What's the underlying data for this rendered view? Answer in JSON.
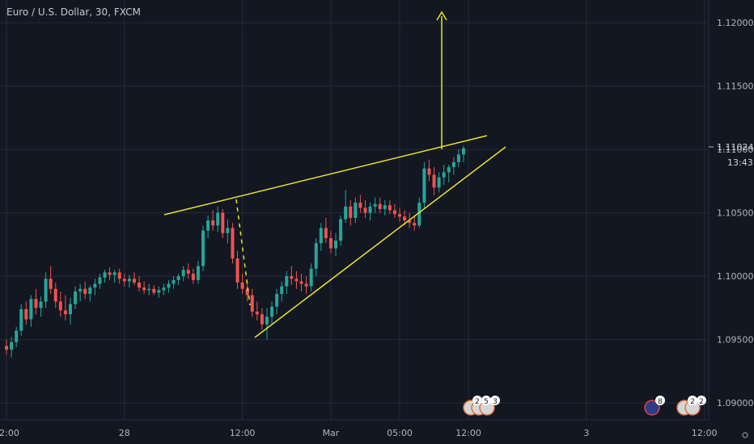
{
  "header": {
    "symbol": "Euro / U.S. Dollar",
    "interval": "30",
    "exchange": "FXCM"
  },
  "colors": {
    "background": "#131722",
    "grid": "#262a36",
    "up": "#26a69a",
    "down": "#ef5350",
    "drawing": "#e5e522",
    "text": "#b2b5be"
  },
  "price_tag": {
    "value": "1.11024",
    "countdown": "13:43"
  },
  "chart_data": {
    "type": "candlestick",
    "title": "",
    "y_ticks": [
      1.09,
      1.095,
      1.1,
      1.105,
      1.11,
      1.115,
      1.12
    ],
    "y_tick_labels": [
      "1.09000",
      "1.09500",
      "1.10000",
      "1.10500",
      "1.11000",
      "1.11500",
      "1.12000"
    ],
    "ylim": [
      1.0875,
      1.1225
    ],
    "x_ticks": [
      {
        "index": 0,
        "label": "12:00"
      },
      {
        "index": 24,
        "label": "28"
      },
      {
        "index": 48,
        "label": "12:00"
      },
      {
        "index": 66,
        "label": "Mar"
      },
      {
        "index": 80,
        "label": "05:00"
      },
      {
        "index": 94,
        "label": "12:00"
      },
      {
        "index": 118,
        "label": "3"
      },
      {
        "index": 142,
        "label": "12:00"
      }
    ],
    "candles_ohlc": [
      [
        1.0945,
        1.095,
        1.0938,
        1.0942
      ],
      [
        1.0942,
        1.0952,
        1.0936,
        1.0948
      ],
      [
        1.0948,
        1.096,
        1.0944,
        1.0957
      ],
      [
        1.0957,
        1.0978,
        1.0953,
        1.0974
      ],
      [
        1.0974,
        1.098,
        1.0962,
        1.0966
      ],
      [
        1.0966,
        1.0985,
        1.096,
        1.0982
      ],
      [
        1.0982,
        1.099,
        1.097,
        1.0975
      ],
      [
        1.0975,
        1.0984,
        1.0968,
        1.098
      ],
      [
        1.098,
        1.1003,
        1.0975,
        1.0998
      ],
      [
        1.0998,
        1.1008,
        1.0986,
        1.099
      ],
      [
        1.099,
        1.0995,
        1.0975,
        1.098
      ],
      [
        1.098,
        1.0988,
        1.0968,
        1.0973
      ],
      [
        1.0973,
        1.0985,
        1.0965,
        1.097
      ],
      [
        1.097,
        1.0983,
        1.0962,
        1.0978
      ],
      [
        1.0978,
        1.0992,
        1.0974,
        1.0988
      ],
      [
        1.0988,
        1.0994,
        1.098,
        1.099
      ],
      [
        1.099,
        1.0996,
        1.0982,
        1.0986
      ],
      [
        1.0986,
        1.0993,
        1.098,
        1.0991
      ],
      [
        1.0991,
        1.0998,
        1.0985,
        1.0994
      ],
      [
        1.0994,
        1.1002,
        1.099,
        1.0999
      ],
      [
        1.0999,
        1.1005,
        1.0995,
        1.1003
      ],
      [
        1.1003,
        1.1007,
        1.0997,
        1.1001
      ],
      [
        1.1001,
        1.1005,
        1.0995,
        1.1003
      ],
      [
        1.1003,
        1.1006,
        1.0994,
        1.0998
      ],
      [
        1.0998,
        1.1002,
        1.0992,
        1.0996
      ],
      [
        1.0996,
        1.1001,
        1.0991,
        1.0998
      ],
      [
        1.0998,
        1.1003,
        1.0993,
        1.0995
      ],
      [
        1.0995,
        1.1,
        1.0988,
        1.0991
      ],
      [
        1.0991,
        1.0996,
        1.0986,
        1.0989
      ],
      [
        1.0989,
        1.0994,
        1.0985,
        1.099
      ],
      [
        1.099,
        1.0993,
        1.0985,
        1.0987
      ],
      [
        1.0987,
        1.0992,
        1.0983,
        1.0989
      ],
      [
        1.0989,
        1.0994,
        1.0985,
        1.0991
      ],
      [
        1.0991,
        1.0997,
        1.0987,
        1.0994
      ],
      [
        1.0994,
        1.1,
        1.099,
        1.0997
      ],
      [
        1.0997,
        1.1002,
        1.0993,
        1.1
      ],
      [
        1.1,
        1.1008,
        1.0996,
        1.1005
      ],
      [
        1.1005,
        1.101,
        1.0998,
        1.1002
      ],
      [
        1.1002,
        1.1006,
        1.0994,
        1.0997
      ],
      [
        1.0997,
        1.1012,
        1.0994,
        1.1008
      ],
      [
        1.1008,
        1.104,
        1.1004,
        1.1036
      ],
      [
        1.1036,
        1.1048,
        1.103,
        1.1044
      ],
      [
        1.1044,
        1.1052,
        1.1036,
        1.104
      ],
      [
        1.104,
        1.1055,
        1.1035,
        1.105
      ],
      [
        1.105,
        1.1053,
        1.103,
        1.1034
      ],
      [
        1.1034,
        1.1045,
        1.1026,
        1.1038
      ],
      [
        1.1038,
        1.1042,
        1.101,
        1.1014
      ],
      [
        1.1014,
        1.102,
        1.099,
        1.0995
      ],
      [
        1.0995,
        1.1002,
        1.0986,
        1.099
      ],
      [
        1.099,
        1.0996,
        1.098,
        1.0985
      ],
      [
        1.0985,
        1.099,
        1.0968,
        1.0972
      ],
      [
        1.0972,
        1.098,
        1.0965,
        1.097
      ],
      [
        1.097,
        1.0975,
        1.0958,
        1.0962
      ],
      [
        1.0962,
        1.0975,
        1.095,
        1.0968
      ],
      [
        1.0968,
        1.098,
        1.0962,
        1.0976
      ],
      [
        1.0976,
        1.099,
        1.097,
        1.0986
      ],
      [
        1.0986,
        1.0996,
        1.098,
        1.0992
      ],
      [
        1.0992,
        1.1004,
        1.0986,
        1.1
      ],
      [
        1.1,
        1.1008,
        1.0993,
        1.0998
      ],
      [
        1.0998,
        1.1004,
        1.099,
        1.0996
      ],
      [
        1.0996,
        1.1002,
        1.0988,
        1.0994
      ],
      [
        1.0994,
        1.1,
        1.0986,
        1.0992
      ],
      [
        1.0992,
        1.101,
        1.0988,
        1.1006
      ],
      [
        1.1006,
        1.103,
        1.1,
        1.1026
      ],
      [
        1.1026,
        1.1042,
        1.102,
        1.1038
      ],
      [
        1.1038,
        1.1046,
        1.1026,
        1.103
      ],
      [
        1.103,
        1.1036,
        1.1018,
        1.1022
      ],
      [
        1.1022,
        1.1034,
        1.1016,
        1.1028
      ],
      [
        1.1028,
        1.1048,
        1.1024,
        1.1045
      ],
      [
        1.1045,
        1.1068,
        1.1042,
        1.1055
      ],
      [
        1.1055,
        1.106,
        1.104,
        1.1046
      ],
      [
        1.1046,
        1.1062,
        1.1042,
        1.1058
      ],
      [
        1.1058,
        1.1064,
        1.105,
        1.1054
      ],
      [
        1.1054,
        1.106,
        1.1046,
        1.105
      ],
      [
        1.105,
        1.1058,
        1.1044,
        1.1055
      ],
      [
        1.1055,
        1.1062,
        1.105,
        1.1057
      ],
      [
        1.1057,
        1.1062,
        1.105,
        1.1053
      ],
      [
        1.1053,
        1.106,
        1.1048,
        1.1056
      ],
      [
        1.1056,
        1.106,
        1.1049,
        1.1052
      ],
      [
        1.1052,
        1.1057,
        1.1046,
        1.1049
      ],
      [
        1.1049,
        1.1054,
        1.1043,
        1.1047
      ],
      [
        1.1047,
        1.1052,
        1.104,
        1.1044
      ],
      [
        1.1044,
        1.105,
        1.1038,
        1.1042
      ],
      [
        1.1042,
        1.1048,
        1.1036,
        1.104
      ],
      [
        1.104,
        1.1062,
        1.1038,
        1.1058
      ],
      [
        1.1058,
        1.109,
        1.1054,
        1.1085
      ],
      [
        1.1085,
        1.1092,
        1.1075,
        1.108
      ],
      [
        1.108,
        1.1086,
        1.1064,
        1.107
      ],
      [
        1.107,
        1.1082,
        1.1066,
        1.1078
      ],
      [
        1.1078,
        1.1088,
        1.1072,
        1.1082
      ],
      [
        1.1082,
        1.1088,
        1.1074,
        1.1086
      ],
      [
        1.1086,
        1.1094,
        1.108,
        1.109
      ],
      [
        1.109,
        1.11,
        1.1086,
        1.1096
      ],
      [
        1.1096,
        1.1103,
        1.109,
        1.1101
      ]
    ]
  }
}
